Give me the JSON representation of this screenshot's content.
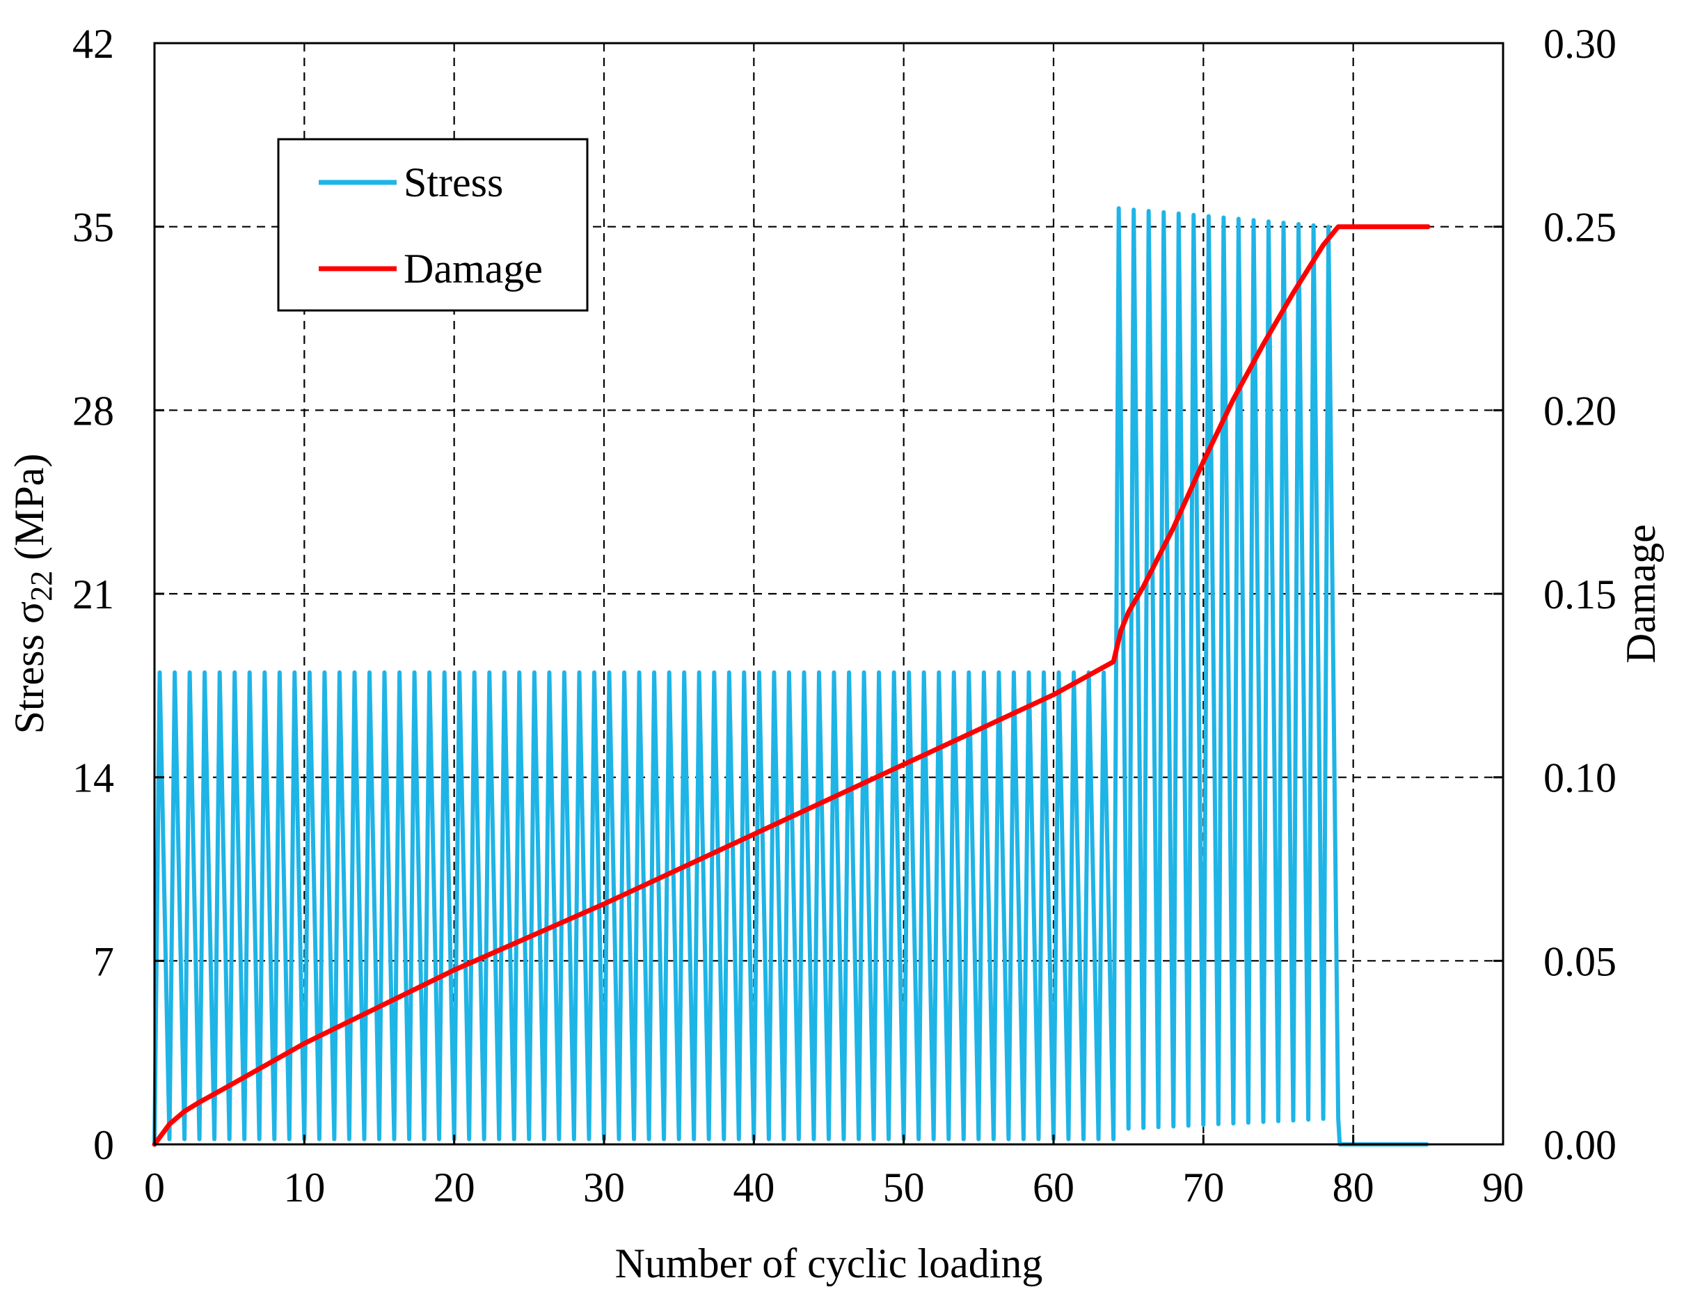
{
  "chart_data": {
    "type": "line",
    "title": "",
    "xlabel": "Number of cyclic loading",
    "ylabel_left": "Stress σ22 (MPa)",
    "ylabel_left_parts": {
      "prefix": "Stress σ",
      "subscript": "22",
      "suffix": " (MPa)"
    },
    "ylabel_right": "Damage",
    "xlim": [
      0,
      90
    ],
    "ylim_left": [
      0,
      42
    ],
    "ylim_right": [
      0.0,
      0.3
    ],
    "xticks": [
      "0",
      "10",
      "20",
      "30",
      "40",
      "50",
      "60",
      "70",
      "80",
      "90"
    ],
    "yticks_left": [
      "0",
      "7",
      "14",
      "21",
      "28",
      "35",
      "42"
    ],
    "yticks_right": [
      "0.00",
      "0.05",
      "0.10",
      "0.15",
      "0.20",
      "0.25",
      "0.30"
    ],
    "grid": "dashed",
    "legend_position": "top-left",
    "series": [
      {
        "name": "Stress",
        "axis": "left",
        "color": "#1fb4e6",
        "description": "cyclic loading, one cycle per unit x",
        "phases": [
          {
            "cycles": [
              0,
              64
            ],
            "peak": 18.0,
            "min": 0.2
          },
          {
            "cycles": [
              64,
              79
            ],
            "peak_start": 35.7,
            "peak_end": 35.0,
            "min_start": 0.6,
            "min_end": 1.0
          },
          {
            "cycles": [
              79,
              85
            ],
            "value": 0
          }
        ],
        "cycle_count": 79
      },
      {
        "name": "Damage",
        "axis": "right",
        "color": "#ff0000",
        "x": [
          0,
          1,
          2,
          3,
          5,
          10,
          20,
          30,
          40,
          50,
          60,
          64,
          64.5,
          65,
          66,
          67,
          68,
          70,
          72,
          74,
          76,
          78,
          79,
          85
        ],
        "values": [
          0.0,
          0.0055,
          0.009,
          0.0115,
          0.016,
          0.0275,
          0.0475,
          0.0655,
          0.0845,
          0.1035,
          0.1225,
          0.1315,
          0.14,
          0.145,
          0.152,
          0.16,
          0.168,
          0.186,
          0.203,
          0.218,
          0.232,
          0.245,
          0.25,
          0.25
        ]
      }
    ]
  },
  "legend": {
    "entries": [
      {
        "label": "Stress",
        "color": "#1fb4e6"
      },
      {
        "label": "Damage",
        "color": "#ff0000"
      }
    ]
  }
}
